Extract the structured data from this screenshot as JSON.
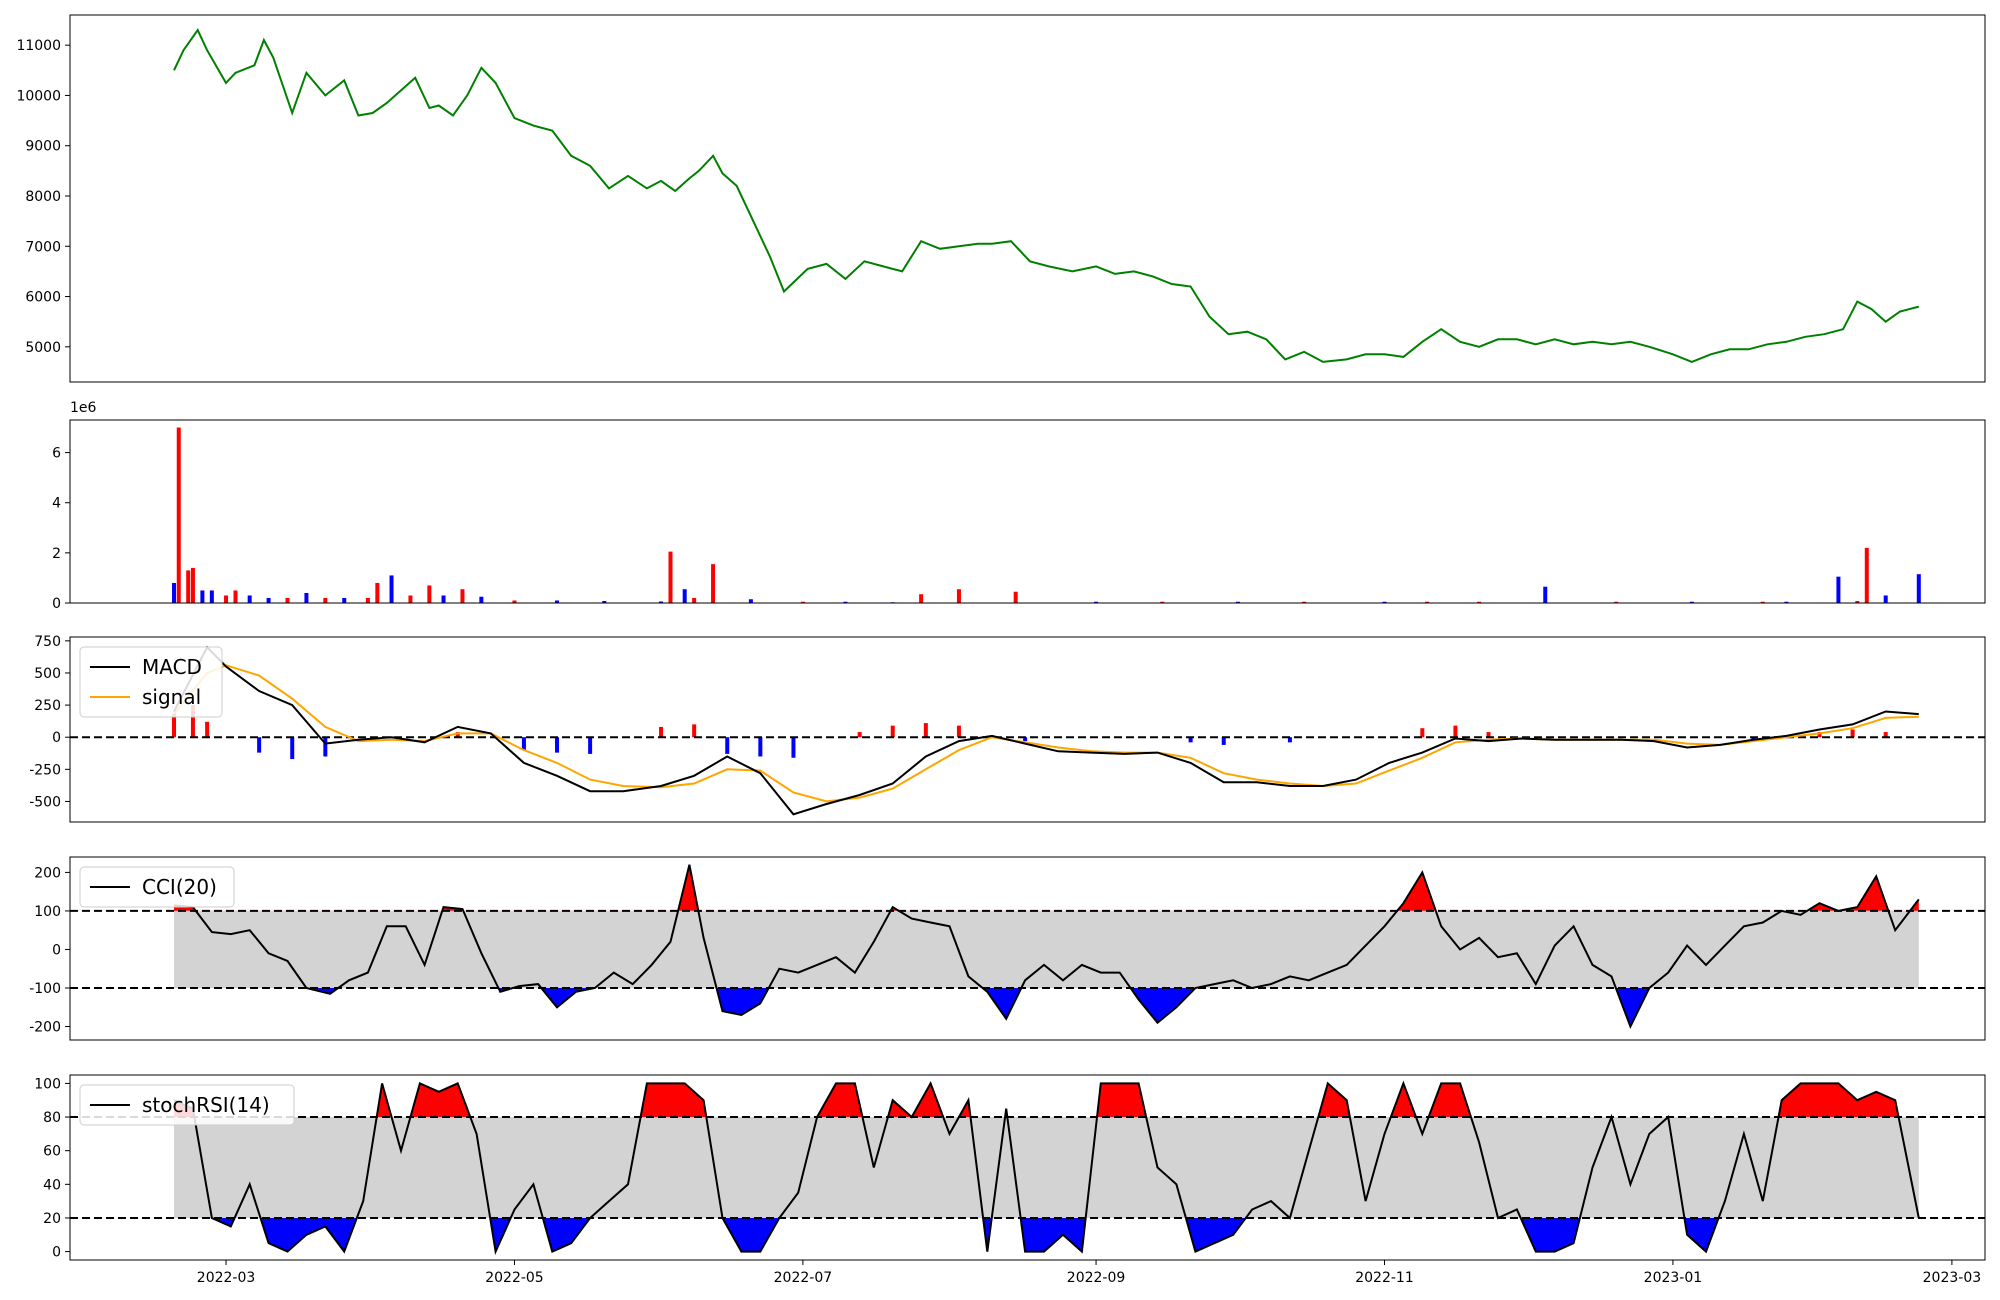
{
  "figure": {
    "x_tick_labels": [
      "2022-03",
      "2022-05",
      "2022-07",
      "2022-09",
      "2022-11",
      "2023-01",
      "2023-03"
    ],
    "x_tick_dates": [
      "2022-03-01",
      "2022-05-01",
      "2022-07-01",
      "2022-09-01",
      "2022-11-01",
      "2023-01-01",
      "2023-03-01"
    ],
    "x_range": [
      "2022-01-27",
      "2023-03-08"
    ],
    "data_range": [
      "2022-02-18",
      "2023-02-22"
    ]
  },
  "chart_data": [
    {
      "id": "price",
      "type": "line",
      "color": "#008000",
      "ylim": [
        4300,
        11600
      ],
      "yticks": [
        5000,
        6000,
        7000,
        8000,
        9000,
        10000,
        11000
      ],
      "x": [
        "2022-02-18",
        "2022-02-20",
        "2022-02-23",
        "2022-02-25",
        "2022-03-01",
        "2022-03-03",
        "2022-03-07",
        "2022-03-09",
        "2022-03-11",
        "2022-03-13",
        "2022-03-15",
        "2022-03-18",
        "2022-03-22",
        "2022-03-26",
        "2022-03-29",
        "2022-04-01",
        "2022-04-04",
        "2022-04-07",
        "2022-04-10",
        "2022-04-13",
        "2022-04-15",
        "2022-04-18",
        "2022-04-21",
        "2022-04-24",
        "2022-04-27",
        "2022-05-01",
        "2022-05-05",
        "2022-05-09",
        "2022-05-13",
        "2022-05-17",
        "2022-05-21",
        "2022-05-25",
        "2022-05-29",
        "2022-06-01",
        "2022-06-04",
        "2022-06-07",
        "2022-06-09",
        "2022-06-12",
        "2022-06-14",
        "2022-06-17",
        "2022-06-20",
        "2022-06-24",
        "2022-06-27",
        "2022-07-02",
        "2022-07-06",
        "2022-07-10",
        "2022-07-14",
        "2022-07-18",
        "2022-07-22",
        "2022-07-26",
        "2022-07-30",
        "2022-08-03",
        "2022-08-07",
        "2022-08-10",
        "2022-08-14",
        "2022-08-18",
        "2022-08-22",
        "2022-08-27",
        "2022-09-01",
        "2022-09-05",
        "2022-09-09",
        "2022-09-13",
        "2022-09-17",
        "2022-09-21",
        "2022-09-25",
        "2022-09-29",
        "2022-10-03",
        "2022-10-07",
        "2022-10-11",
        "2022-10-15",
        "2022-10-19",
        "2022-10-24",
        "2022-10-28",
        "2022-11-01",
        "2022-11-05",
        "2022-11-09",
        "2022-11-13",
        "2022-11-17",
        "2022-11-21",
        "2022-11-25",
        "2022-11-29",
        "2022-12-03",
        "2022-12-07",
        "2022-12-11",
        "2022-12-15",
        "2022-12-19",
        "2022-12-23",
        "2022-12-27",
        "2023-01-01",
        "2023-01-05",
        "2023-01-09",
        "2023-01-13",
        "2023-01-17",
        "2023-01-21",
        "2023-01-25",
        "2023-01-29",
        "2023-02-02",
        "2023-02-06",
        "2023-02-09",
        "2023-02-12",
        "2023-02-15",
        "2023-02-18",
        "2023-02-22"
      ],
      "y": [
        10500,
        10900,
        11300,
        10900,
        10250,
        10450,
        10600,
        11100,
        10750,
        10200,
        9650,
        10450,
        10000,
        10300,
        9600,
        9650,
        9850,
        10100,
        10350,
        9750,
        9800,
        9600,
        10000,
        10550,
        10250,
        9550,
        9400,
        9300,
        8800,
        8600,
        8150,
        8400,
        8150,
        8300,
        8100,
        8350,
        8500,
        8800,
        8450,
        8200,
        7600,
        6800,
        6100,
        6550,
        6650,
        6350,
        6700,
        6600,
        6500,
        7100,
        6950,
        7000,
        7050,
        7050,
        7100,
        6700,
        6600,
        6500,
        6600,
        6450,
        6500,
        6400,
        6250,
        6200,
        5600,
        5250,
        5300,
        5150,
        4750,
        4900,
        4700,
        4750,
        4850,
        4850,
        4800,
        5100,
        5350,
        5100,
        5000,
        5150,
        5150,
        5050,
        5150,
        5050,
        5100,
        5050,
        5100,
        5000,
        4850,
        4700,
        4850,
        4950,
        4950,
        5050,
        5100,
        5200,
        5250,
        5350,
        5900,
        5750,
        5500,
        5700,
        5800
      ]
    },
    {
      "id": "volume",
      "type": "bar",
      "offset_label": "1e6",
      "ylim": [
        0,
        7.3
      ],
      "yticks": [
        0,
        2,
        4,
        6
      ],
      "up_color": "#ff0000",
      "down_color": "#0000ff",
      "x": [
        "2022-02-18",
        "2022-02-19",
        "2022-02-21",
        "2022-02-22",
        "2022-02-24",
        "2022-02-26",
        "2022-03-01",
        "2022-03-03",
        "2022-03-06",
        "2022-03-10",
        "2022-03-14",
        "2022-03-18",
        "2022-03-22",
        "2022-03-26",
        "2022-03-31",
        "2022-04-02",
        "2022-04-05",
        "2022-04-09",
        "2022-04-13",
        "2022-04-16",
        "2022-04-20",
        "2022-04-24",
        "2022-05-01",
        "2022-05-10",
        "2022-05-20",
        "2022-06-01",
        "2022-06-03",
        "2022-06-06",
        "2022-06-08",
        "2022-06-12",
        "2022-06-20",
        "2022-07-01",
        "2022-07-10",
        "2022-07-20",
        "2022-07-26",
        "2022-08-03",
        "2022-08-15",
        "2022-09-01",
        "2022-09-15",
        "2022-10-01",
        "2022-10-15",
        "2022-11-01",
        "2022-11-10",
        "2022-11-21",
        "2022-12-05",
        "2022-12-20",
        "2023-01-05",
        "2023-01-20",
        "2023-01-25",
        "2023-02-05",
        "2023-02-09",
        "2023-02-11",
        "2023-02-15",
        "2023-02-22"
      ],
      "values": [
        0.8,
        7.0,
        1.3,
        1.4,
        0.5,
        0.5,
        0.3,
        0.5,
        0.3,
        0.2,
        0.2,
        0.4,
        0.2,
        0.2,
        0.2,
        0.8,
        1.1,
        0.3,
        0.7,
        0.3,
        0.55,
        0.25,
        0.1,
        0.1,
        0.08,
        0.06,
        2.05,
        0.55,
        0.2,
        1.55,
        0.15,
        0.05,
        0.05,
        0.03,
        0.35,
        0.55,
        0.45,
        0.05,
        0.05,
        0.05,
        0.05,
        0.05,
        0.05,
        0.05,
        0.65,
        0.05,
        0.05,
        0.05,
        0.05,
        1.05,
        0.08,
        2.2,
        0.3,
        1.15
      ],
      "up": [
        false,
        true,
        true,
        true,
        false,
        false,
        true,
        true,
        false,
        false,
        true,
        false,
        true,
        false,
        true,
        true,
        false,
        true,
        true,
        false,
        true,
        false,
        true,
        false,
        false,
        false,
        true,
        false,
        true,
        true,
        false,
        true,
        false,
        false,
        true,
        true,
        true,
        false,
        true,
        false,
        true,
        false,
        true,
        true,
        false,
        true,
        false,
        true,
        false,
        false,
        true,
        true,
        false,
        false
      ]
    },
    {
      "id": "macd",
      "type": "line",
      "ylim": [
        -660,
        780
      ],
      "yticks": [
        -500,
        -250,
        0,
        250,
        500,
        750
      ],
      "zero_line": 0,
      "legend": [
        {
          "name": "MACD",
          "color": "#000000"
        },
        {
          "name": "signal",
          "color": "#ffa500"
        }
      ],
      "x": [
        "2022-02-18",
        "2022-02-25",
        "2022-03-01",
        "2022-03-08",
        "2022-03-15",
        "2022-03-22",
        "2022-03-29",
        "2022-04-05",
        "2022-04-12",
        "2022-04-19",
        "2022-04-26",
        "2022-05-03",
        "2022-05-10",
        "2022-05-17",
        "2022-05-24",
        "2022-06-01",
        "2022-06-08",
        "2022-06-15",
        "2022-06-22",
        "2022-06-29",
        "2022-07-06",
        "2022-07-13",
        "2022-07-20",
        "2022-07-27",
        "2022-08-03",
        "2022-08-10",
        "2022-08-17",
        "2022-08-24",
        "2022-08-31",
        "2022-09-07",
        "2022-09-14",
        "2022-09-21",
        "2022-09-28",
        "2022-10-05",
        "2022-10-12",
        "2022-10-19",
        "2022-10-26",
        "2022-11-02",
        "2022-11-09",
        "2022-11-16",
        "2022-11-23",
        "2022-11-30",
        "2022-12-07",
        "2022-12-14",
        "2022-12-21",
        "2022-12-28",
        "2023-01-04",
        "2023-01-11",
        "2023-01-18",
        "2023-01-25",
        "2023-02-01",
        "2023-02-08",
        "2023-02-15",
        "2023-02-22"
      ],
      "series": [
        {
          "name": "MACD",
          "color": "#000000",
          "values": [
            200,
            700,
            550,
            360,
            250,
            -50,
            -20,
            0,
            -40,
            80,
            30,
            -200,
            -300,
            -420,
            -420,
            -380,
            -300,
            -150,
            -280,
            -600,
            -520,
            -450,
            -360,
            -150,
            -30,
            10,
            -50,
            -110,
            -120,
            -130,
            -120,
            -200,
            -350,
            -350,
            -380,
            -380,
            -330,
            -200,
            -120,
            -10,
            -30,
            -10,
            -20,
            -20,
            -20,
            -30,
            -80,
            -60,
            -20,
            10,
            60,
            100,
            200,
            180
          ]
        },
        {
          "name": "signal",
          "color": "#ffa500",
          "values": [
            180,
            500,
            560,
            480,
            300,
            80,
            -30,
            -20,
            -30,
            30,
            30,
            -100,
            -200,
            -330,
            -380,
            -390,
            -360,
            -250,
            -260,
            -430,
            -500,
            -470,
            -400,
            -250,
            -100,
            0,
            -40,
            -80,
            -110,
            -120,
            -120,
            -160,
            -280,
            -330,
            -360,
            -380,
            -360,
            -260,
            -160,
            -40,
            -20,
            -10,
            -20,
            -20,
            -20,
            -20,
            -50,
            -60,
            -30,
            0,
            30,
            70,
            150,
            160
          ]
        }
      ],
      "histogram": {
        "x": [
          "2022-02-18",
          "2022-02-22",
          "2022-02-25",
          "2022-03-08",
          "2022-03-15",
          "2022-03-22",
          "2022-04-19",
          "2022-05-03",
          "2022-05-10",
          "2022-05-17",
          "2022-06-01",
          "2022-06-08",
          "2022-06-15",
          "2022-06-22",
          "2022-06-29",
          "2022-07-13",
          "2022-07-20",
          "2022-07-27",
          "2022-08-03",
          "2022-08-17",
          "2022-09-21",
          "2022-09-28",
          "2022-10-12",
          "2022-11-09",
          "2022-11-16",
          "2022-11-23",
          "2023-01-18",
          "2023-02-01",
          "2023-02-08",
          "2023-02-15"
        ],
        "values": [
          180,
          250,
          120,
          -120,
          -170,
          -150,
          40,
          -100,
          -120,
          -130,
          80,
          100,
          -130,
          -150,
          -160,
          40,
          90,
          110,
          90,
          -30,
          -40,
          -60,
          -40,
          70,
          90,
          40,
          -30,
          40,
          60,
          40
        ]
      }
    },
    {
      "id": "cci",
      "type": "area",
      "ylim": [
        -235,
        240
      ],
      "yticks": [
        -200,
        -100,
        0,
        100,
        200
      ],
      "thresholds": [
        100,
        -100
      ],
      "band_color": "#d3d3d3",
      "over_color": "#ff0000",
      "under_color": "#0000ff",
      "legend": [
        {
          "name": "CCI(20)",
          "color": "#000000"
        }
      ],
      "x": [
        "2022-02-18",
        "2022-02-22",
        "2022-02-26",
        "2022-03-02",
        "2022-03-06",
        "2022-03-10",
        "2022-03-14",
        "2022-03-18",
        "2022-03-23",
        "2022-03-27",
        "2022-03-31",
        "2022-04-04",
        "2022-04-08",
        "2022-04-12",
        "2022-04-16",
        "2022-04-20",
        "2022-04-24",
        "2022-04-28",
        "2022-05-02",
        "2022-05-06",
        "2022-05-10",
        "2022-05-14",
        "2022-05-18",
        "2022-05-22",
        "2022-05-26",
        "2022-05-30",
        "2022-06-03",
        "2022-06-07",
        "2022-06-10",
        "2022-06-14",
        "2022-06-18",
        "2022-06-22",
        "2022-06-26",
        "2022-06-30",
        "2022-07-04",
        "2022-07-08",
        "2022-07-12",
        "2022-07-16",
        "2022-07-20",
        "2022-07-24",
        "2022-07-28",
        "2022-08-01",
        "2022-08-05",
        "2022-08-09",
        "2022-08-13",
        "2022-08-17",
        "2022-08-21",
        "2022-08-25",
        "2022-08-29",
        "2022-09-02",
        "2022-09-06",
        "2022-09-10",
        "2022-09-14",
        "2022-09-18",
        "2022-09-22",
        "2022-09-26",
        "2022-09-30",
        "2022-10-04",
        "2022-10-08",
        "2022-10-12",
        "2022-10-16",
        "2022-10-20",
        "2022-10-24",
        "2022-10-28",
        "2022-11-01",
        "2022-11-05",
        "2022-11-09",
        "2022-11-13",
        "2022-11-17",
        "2022-11-21",
        "2022-11-25",
        "2022-11-29",
        "2022-12-03",
        "2022-12-07",
        "2022-12-11",
        "2022-12-15",
        "2022-12-19",
        "2022-12-23",
        "2022-12-27",
        "2022-12-31",
        "2023-01-04",
        "2023-01-08",
        "2023-01-12",
        "2023-01-16",
        "2023-01-20",
        "2023-01-24",
        "2023-01-28",
        "2023-02-01",
        "2023-02-05",
        "2023-02-09",
        "2023-02-13",
        "2023-02-17",
        "2023-02-22"
      ],
      "values": [
        115,
        110,
        45,
        40,
        50,
        -10,
        -30,
        -100,
        -115,
        -80,
        -60,
        60,
        60,
        -40,
        110,
        105,
        -10,
        -110,
        -95,
        -90,
        -150,
        -110,
        -100,
        -60,
        -90,
        -40,
        20,
        220,
        30,
        -160,
        -170,
        -140,
        -50,
        -60,
        -40,
        -20,
        -60,
        20,
        110,
        80,
        70,
        60,
        -70,
        -110,
        -180,
        -80,
        -40,
        -80,
        -40,
        -60,
        -60,
        -130,
        -190,
        -150,
        -100,
        -90,
        -80,
        -100,
        -90,
        -70,
        -80,
        -60,
        -40,
        10,
        60,
        120,
        200,
        60,
        0,
        30,
        -20,
        -10,
        -90,
        10,
        60,
        -40,
        -70,
        -200,
        -100,
        -60,
        10,
        -40,
        10,
        60,
        70,
        100,
        90,
        120,
        100,
        110,
        190,
        50,
        130
      ]
    },
    {
      "id": "stochrsi",
      "type": "area",
      "ylim": [
        -5,
        105
      ],
      "yticks": [
        0,
        20,
        40,
        60,
        80,
        100
      ],
      "thresholds": [
        80,
        20
      ],
      "band_color": "#d3d3d3",
      "over_color": "#ff0000",
      "under_color": "#0000ff",
      "legend": [
        {
          "name": "stochRSI(14)",
          "color": "#000000"
        }
      ],
      "x": [
        "2022-02-18",
        "2022-02-22",
        "2022-02-26",
        "2022-03-02",
        "2022-03-06",
        "2022-03-10",
        "2022-03-14",
        "2022-03-18",
        "2022-03-22",
        "2022-03-26",
        "2022-03-30",
        "2022-04-03",
        "2022-04-07",
        "2022-04-11",
        "2022-04-15",
        "2022-04-19",
        "2022-04-23",
        "2022-04-27",
        "2022-05-01",
        "2022-05-05",
        "2022-05-09",
        "2022-05-13",
        "2022-05-17",
        "2022-05-21",
        "2022-05-25",
        "2022-05-29",
        "2022-06-02",
        "2022-06-06",
        "2022-06-10",
        "2022-06-14",
        "2022-06-18",
        "2022-06-22",
        "2022-06-26",
        "2022-06-30",
        "2022-07-04",
        "2022-07-08",
        "2022-07-12",
        "2022-07-16",
        "2022-07-20",
        "2022-07-24",
        "2022-07-28",
        "2022-08-01",
        "2022-08-05",
        "2022-08-09",
        "2022-08-13",
        "2022-08-17",
        "2022-08-21",
        "2022-08-25",
        "2022-08-29",
        "2022-09-02",
        "2022-09-06",
        "2022-09-10",
        "2022-09-14",
        "2022-09-18",
        "2022-09-22",
        "2022-09-26",
        "2022-09-30",
        "2022-10-04",
        "2022-10-08",
        "2022-10-12",
        "2022-10-16",
        "2022-10-20",
        "2022-10-24",
        "2022-10-28",
        "2022-11-01",
        "2022-11-05",
        "2022-11-09",
        "2022-11-13",
        "2022-11-17",
        "2022-11-21",
        "2022-11-25",
        "2022-11-29",
        "2022-12-03",
        "2022-12-07",
        "2022-12-11",
        "2022-12-15",
        "2022-12-19",
        "2022-12-23",
        "2022-12-27",
        "2022-12-31",
        "2023-01-04",
        "2023-01-08",
        "2023-01-12",
        "2023-01-16",
        "2023-01-20",
        "2023-01-24",
        "2023-01-28",
        "2023-02-01",
        "2023-02-05",
        "2023-02-09",
        "2023-02-13",
        "2023-02-17",
        "2023-02-22"
      ],
      "values": [
        90,
        85,
        20,
        15,
        40,
        5,
        0,
        10,
        15,
        0,
        30,
        100,
        60,
        100,
        95,
        100,
        70,
        0,
        25,
        40,
        0,
        5,
        20,
        30,
        40,
        100,
        100,
        100,
        90,
        20,
        0,
        0,
        20,
        35,
        80,
        100,
        100,
        50,
        90,
        80,
        100,
        70,
        90,
        0,
        85,
        0,
        0,
        10,
        0,
        100,
        100,
        100,
        50,
        40,
        0,
        5,
        10,
        25,
        30,
        20,
        60,
        100,
        90,
        30,
        70,
        100,
        70,
        100,
        100,
        65,
        20,
        25,
        0,
        0,
        5,
        50,
        80,
        40,
        70,
        80,
        10,
        0,
        30,
        70,
        30,
        90,
        100,
        100,
        100,
        90,
        95,
        90,
        20
      ]
    }
  ]
}
